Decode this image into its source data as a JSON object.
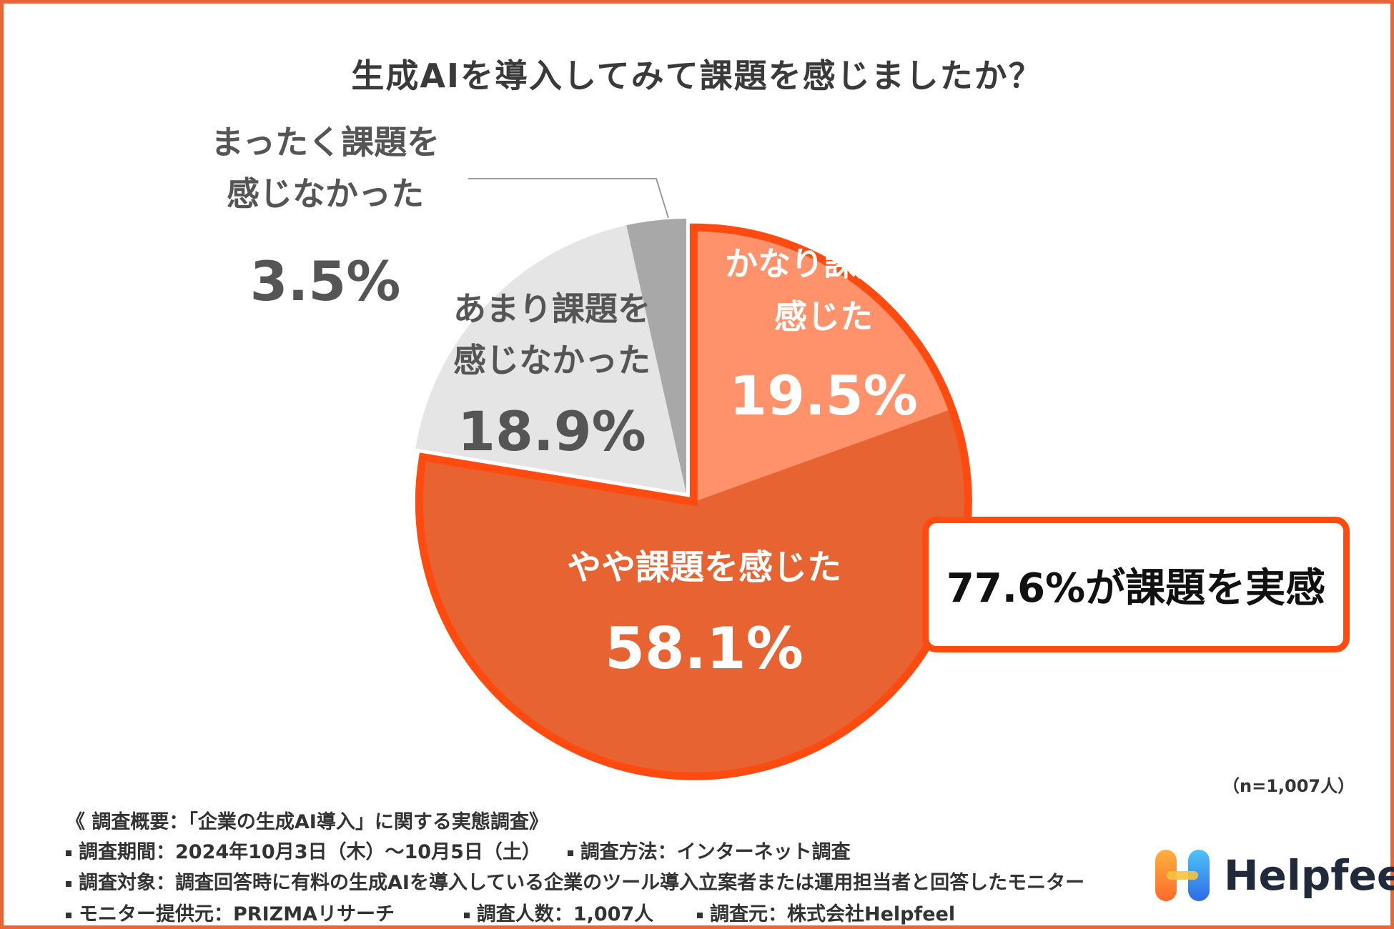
{
  "chart_data": {
    "type": "pie",
    "title": "生成AIを導入してみて課題を感じましたか？",
    "slices": [
      {
        "label_lines": [
          "かなり課題を",
          "感じた"
        ],
        "value": 19.5,
        "value_label": "19.5%",
        "color": "#FF926A",
        "label_color": "#ffffff"
      },
      {
        "label_lines": [
          "やや課題を感じた"
        ],
        "value": 58.1,
        "value_label": "58.1%",
        "color": "#E76332",
        "label_color": "#ffffff"
      },
      {
        "label_lines": [
          "あまり課題を",
          "感じなかった"
        ],
        "value": 18.9,
        "value_label": "18.9%",
        "color": "#E5E5E5",
        "label_color": "#555555"
      },
      {
        "label_lines": [
          "まったく課題を",
          "感じなかった"
        ],
        "value": 3.5,
        "value_label": "3.5%",
        "color": "#A8A8A8",
        "label_color": "#555555"
      }
    ],
    "highlight_color": "#FF4A10",
    "callout": "77.6%が課題を実感",
    "sample_size": "（n=1,007人）"
  },
  "footer": {
    "heading": "《 調査概要：「企業の生成AI導入」に関する実態調査》",
    "period": "調査期間：2024年10月3日（木）〜10月5日（土）",
    "method": "調査方法：インターネット調査",
    "target": "調査対象：調査回答時に有料の生成AIを導入している企業のツール導入立案者または運用担当者と回答したモニター",
    "provider": "モニター提供元：PRIZMAリサーチ",
    "count": "調査人数：1,007人",
    "source": "調査元：株式会社Helpfeel"
  },
  "logo": {
    "name": "Helpfeel",
    "icon": "helpfeel-logo-icon"
  },
  "colors": {
    "border": "#E8663A",
    "text": "#333333"
  }
}
